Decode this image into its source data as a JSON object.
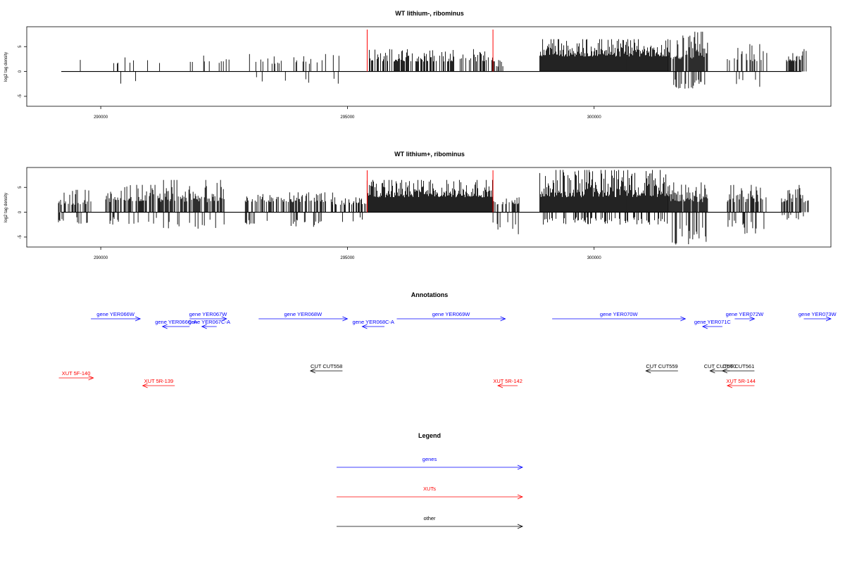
{
  "chart_data": [
    {
      "type": "bar",
      "title": "WT lithium-, ribominus",
      "ylabel": "log2 tag density",
      "xlim": [
        288500,
        304800
      ],
      "ylim": [
        -7,
        9
      ],
      "x_ticks": [
        "290000",
        "295000",
        "300000"
      ],
      "y_ticks": [
        "-5",
        "0",
        "5"
      ],
      "markers": [
        295400,
        297950
      ],
      "marker_color": "#ff0000",
      "bar_color": "#000000",
      "segments": [
        {
          "start": 289300,
          "end": 289700,
          "density": 0.15,
          "pos": [
            1.5,
            3.0
          ],
          "neg": [
            0,
            0
          ]
        },
        {
          "start": 290150,
          "end": 291300,
          "density": 0.12,
          "pos": [
            1.5,
            3.5
          ],
          "neg": [
            1.5,
            3.2
          ]
        },
        {
          "start": 291800,
          "end": 292600,
          "density": 0.15,
          "pos": [
            1.5,
            3.2
          ],
          "neg": [
            0,
            0
          ]
        },
        {
          "start": 293000,
          "end": 295000,
          "density": 0.14,
          "pos": [
            1.5,
            3.5
          ],
          "neg": [
            1.0,
            2.5
          ]
        },
        {
          "start": 295400,
          "end": 297950,
          "density": 0.55,
          "pos": [
            2.0,
            4.5
          ],
          "neg": [
            0,
            0
          ]
        },
        {
          "start": 297950,
          "end": 298150,
          "density": 0.4,
          "pos": [
            1.0,
            2.5
          ],
          "neg": [
            1.5,
            3.5
          ]
        },
        {
          "start": 298900,
          "end": 301500,
          "density": 1.0,
          "pos": [
            3.0,
            6.5
          ],
          "neg": [
            0,
            0
          ]
        },
        {
          "start": 301500,
          "end": 302300,
          "density": 0.9,
          "pos": [
            2.5,
            8.0
          ],
          "neg": [
            1.5,
            3.5
          ]
        },
        {
          "start": 302700,
          "end": 303500,
          "density": 0.45,
          "pos": [
            2.0,
            5.5
          ],
          "neg": [
            1.5,
            3.5
          ]
        },
        {
          "start": 303900,
          "end": 304300,
          "density": 0.6,
          "pos": [
            2.0,
            4.5
          ],
          "neg": [
            0,
            0
          ]
        }
      ]
    },
    {
      "type": "bar",
      "title": "WT lithium+, ribominus",
      "ylabel": "log2 tag density",
      "xlim": [
        288500,
        304800
      ],
      "ylim": [
        -7,
        9
      ],
      "x_ticks": [
        "290000",
        "295000",
        "300000"
      ],
      "y_ticks": [
        "-5",
        "0",
        "5"
      ],
      "markers": [
        295400,
        297950
      ],
      "marker_color": "#ff0000",
      "bar_color": "#000000",
      "segments": [
        {
          "start": 289100,
          "end": 289800,
          "density": 0.6,
          "pos": [
            1.5,
            4.5
          ],
          "neg": [
            1.0,
            2.5
          ]
        },
        {
          "start": 290100,
          "end": 291200,
          "density": 0.7,
          "pos": [
            2.0,
            5.5
          ],
          "neg": [
            1.0,
            2.5
          ]
        },
        {
          "start": 291200,
          "end": 292500,
          "density": 0.75,
          "pos": [
            2.0,
            6.5
          ],
          "neg": [
            1.0,
            3.5
          ]
        },
        {
          "start": 292900,
          "end": 294700,
          "density": 0.5,
          "pos": [
            2.0,
            4.0
          ],
          "neg": [
            1.5,
            3.0
          ]
        },
        {
          "start": 294700,
          "end": 295400,
          "density": 0.4,
          "pos": [
            1.5,
            3.0
          ],
          "neg": [
            1.0,
            2.0
          ]
        },
        {
          "start": 295400,
          "end": 297950,
          "density": 1.0,
          "pos": [
            3.0,
            6.5
          ],
          "neg": [
            0,
            0
          ]
        },
        {
          "start": 297950,
          "end": 298500,
          "density": 0.6,
          "pos": [
            1.5,
            3.0
          ],
          "neg": [
            2.0,
            4.5
          ]
        },
        {
          "start": 298900,
          "end": 301500,
          "density": 1.0,
          "pos": [
            3.0,
            8.5
          ],
          "neg": [
            1.0,
            2.5
          ]
        },
        {
          "start": 301500,
          "end": 302300,
          "density": 0.95,
          "pos": [
            2.0,
            6.0
          ],
          "neg": [
            2.5,
            6.5
          ]
        },
        {
          "start": 302700,
          "end": 303500,
          "density": 0.7,
          "pos": [
            2.0,
            5.5
          ],
          "neg": [
            1.5,
            4.5
          ]
        },
        {
          "start": 303800,
          "end": 304350,
          "density": 0.7,
          "pos": [
            2.0,
            6.0
          ],
          "neg": [
            0.5,
            1.5
          ]
        }
      ]
    },
    {
      "type": "other",
      "title": "Annotations",
      "xlim": [
        288500,
        304800
      ],
      "features": [
        {
          "label": "gene YER066W",
          "start": 289800,
          "end": 290800,
          "strand": "+",
          "row": 0,
          "color": "#0000ff"
        },
        {
          "label": "gene YER067W",
          "start": 291800,
          "end": 292550,
          "strand": "+",
          "row": 0,
          "color": "#0000ff"
        },
        {
          "label": "gene YER068W",
          "start": 293200,
          "end": 295000,
          "strand": "+",
          "row": 0,
          "color": "#0000ff"
        },
        {
          "label": "gene YER069W",
          "start": 296000,
          "end": 298200,
          "strand": "+",
          "row": 0,
          "color": "#0000ff"
        },
        {
          "label": "gene YER070W",
          "start": 299150,
          "end": 301850,
          "strand": "+",
          "row": 0,
          "color": "#0000ff"
        },
        {
          "label": "gene YER072W",
          "start": 302850,
          "end": 303250,
          "strand": "+",
          "row": 0,
          "color": "#0000ff"
        },
        {
          "label": "gene YER073W",
          "start": 304250,
          "end": 304800,
          "strand": "+",
          "row": 0,
          "color": "#0000ff"
        },
        {
          "label": "gene YER066C-A",
          "start": 291250,
          "end": 291800,
          "strand": "-",
          "row": 1,
          "color": "#0000ff"
        },
        {
          "label": "gene YER067C-A",
          "start": 292050,
          "end": 292350,
          "strand": "-",
          "row": 1,
          "color": "#0000ff"
        },
        {
          "label": "gene YER068C-A",
          "start": 295300,
          "end": 295750,
          "strand": "-",
          "row": 1,
          "color": "#0000ff"
        },
        {
          "label": "gene YER071C",
          "start": 302200,
          "end": 302600,
          "strand": "-",
          "row": 1,
          "color": "#0000ff"
        },
        {
          "label": "CUT CUT558",
          "start": 294250,
          "end": 294900,
          "strand": "-",
          "row": 2,
          "color": "#000000"
        },
        {
          "label": "CUT CUT559",
          "start": 301050,
          "end": 301700,
          "strand": "-",
          "row": 2,
          "color": "#000000"
        },
        {
          "label": "CUT CUT560",
          "start": 302350,
          "end": 302750,
          "strand": "-",
          "row": 2,
          "color": "#000000"
        },
        {
          "label": "CUT CUT561",
          "start": 302600,
          "end": 303250,
          "strand": "-",
          "row": 2,
          "color": "#000000"
        },
        {
          "label": "XUT 5F-140",
          "start": 289150,
          "end": 289850,
          "strand": "+",
          "row": 3,
          "color": "#ff0000"
        },
        {
          "label": "XUT 5R-142",
          "start": 298050,
          "end": 298450,
          "strand": "-",
          "row": 4,
          "color": "#ff0000"
        },
        {
          "label": "XUT 5R-144",
          "start": 302700,
          "end": 303250,
          "strand": "-",
          "row": 4,
          "color": "#ff0000"
        },
        {
          "label": "XUT 5R-139",
          "start": 290850,
          "end": 291500,
          "strand": "-",
          "row": 4,
          "color": "#ff0000"
        }
      ]
    },
    {
      "type": "other",
      "title": "Legend",
      "entries": [
        {
          "label": "genes",
          "color": "#0000ff"
        },
        {
          "label": "XUTs",
          "color": "#ff0000"
        },
        {
          "label": "other",
          "color": "#000000"
        }
      ]
    }
  ]
}
